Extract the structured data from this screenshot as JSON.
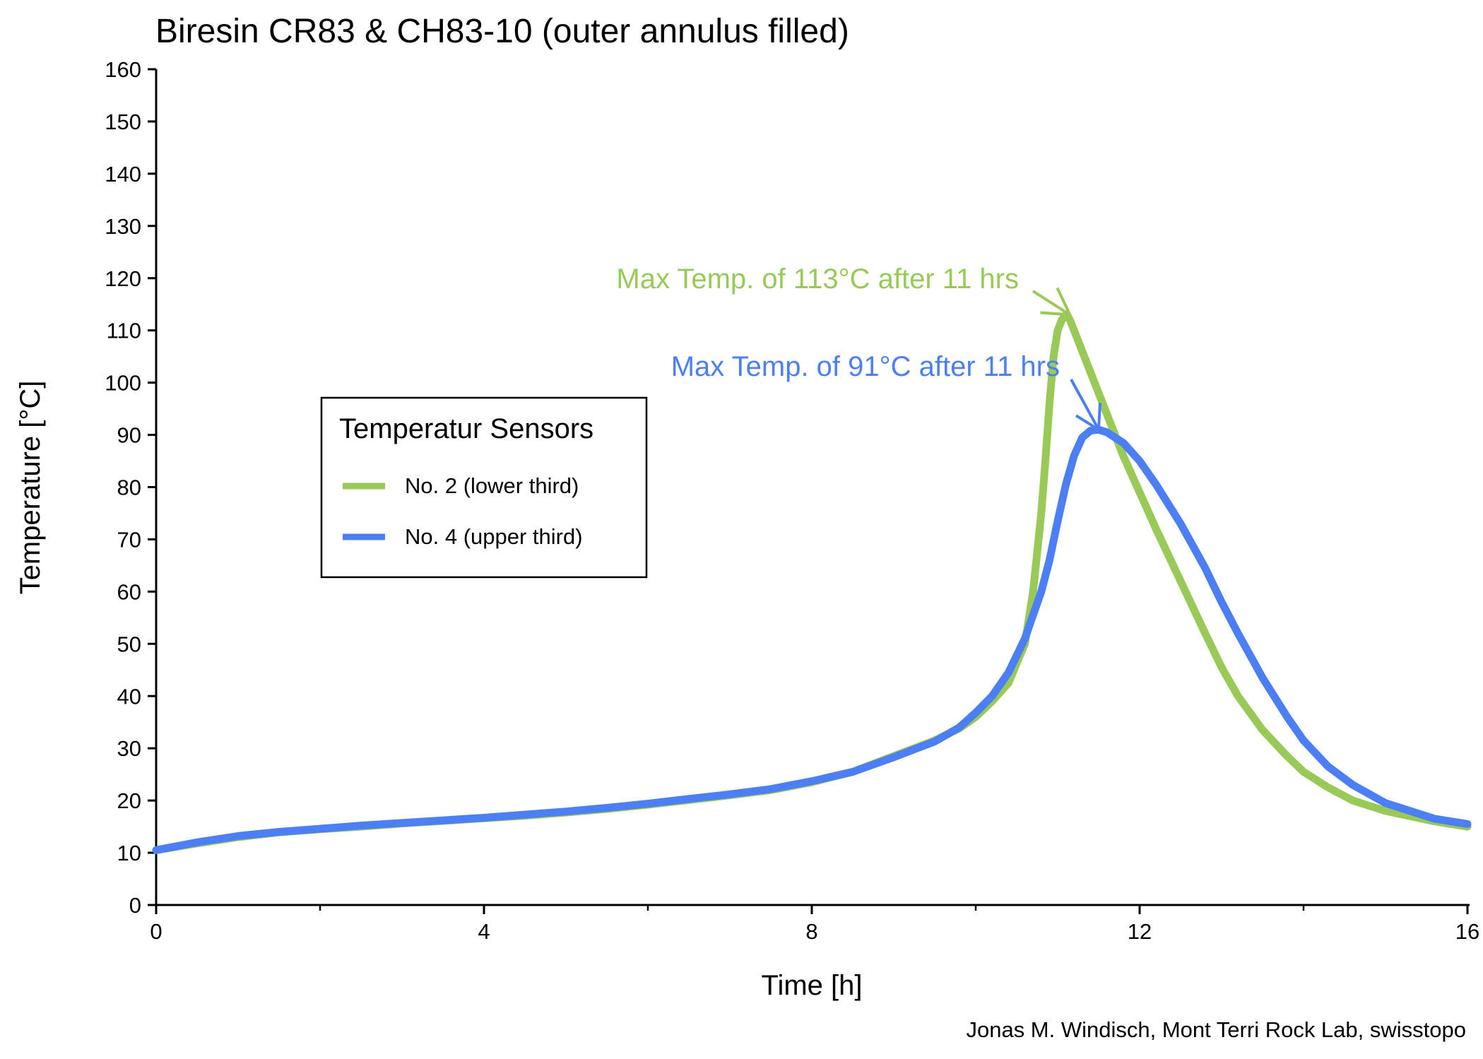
{
  "chart_data": {
    "type": "line",
    "title": "Biresin CR83 & CH83-10 (outer annulus filled)",
    "xlabel": "Time [h]",
    "ylabel": "Temperature [°C]",
    "xlim": [
      0,
      16
    ],
    "ylim": [
      0,
      160
    ],
    "x_ticks": [
      0,
      4,
      8,
      12,
      16
    ],
    "x_minor_ticks": [
      2,
      6,
      10,
      14
    ],
    "y_ticks": [
      0,
      10,
      20,
      30,
      40,
      50,
      60,
      70,
      80,
      90,
      100,
      110,
      120,
      130,
      140,
      150,
      160
    ],
    "grid": false,
    "legend": {
      "title": "Temperatur Sensors",
      "position": "center-left"
    },
    "series": [
      {
        "name": "No. 2 (lower third)",
        "color": "#99c957",
        "x": [
          0,
          0.5,
          1,
          1.5,
          2,
          2.5,
          3,
          3.5,
          4,
          4.5,
          5,
          5.5,
          6,
          6.5,
          7,
          7.5,
          8,
          8.5,
          9,
          9.5,
          9.8,
          10,
          10.2,
          10.4,
          10.6,
          10.7,
          10.8,
          10.85,
          10.9,
          10.95,
          11,
          11.05,
          11.1,
          11.15,
          11.2,
          11.3,
          11.4,
          11.5,
          11.6,
          11.8,
          12,
          12.2,
          12.5,
          12.8,
          13,
          13.2,
          13.5,
          13.8,
          14,
          14.3,
          14.6,
          15,
          15.3,
          15.6,
          16
        ],
        "values": [
          10.5,
          11.8,
          13.0,
          13.9,
          14.5,
          15.0,
          15.6,
          16.1,
          16.6,
          17.1,
          17.7,
          18.4,
          19.2,
          20.1,
          21.0,
          22.0,
          23.5,
          25.5,
          28.5,
          31.5,
          33.8,
          36.0,
          39.0,
          42.5,
          50.0,
          60.0,
          75.0,
          85.0,
          96.0,
          105.0,
          110.0,
          112.0,
          113.0,
          112.0,
          110.0,
          106.0,
          102.0,
          98.0,
          94.0,
          86.0,
          79.0,
          72.0,
          62.0,
          52.0,
          45.5,
          40.0,
          33.5,
          28.5,
          25.5,
          22.5,
          20.0,
          18.0,
          17.0,
          16.0,
          15.0
        ]
      },
      {
        "name": "No. 4 (upper third)",
        "color": "#4c7ff5",
        "x": [
          0,
          0.5,
          1,
          1.5,
          2,
          2.5,
          3,
          3.5,
          4,
          4.5,
          5,
          5.5,
          6,
          6.5,
          7,
          7.5,
          8,
          8.5,
          9,
          9.5,
          9.8,
          10,
          10.2,
          10.4,
          10.6,
          10.8,
          10.9,
          11,
          11.1,
          11.2,
          11.3,
          11.4,
          11.5,
          11.6,
          11.8,
          12,
          12.2,
          12.5,
          12.8,
          13,
          13.2,
          13.5,
          13.8,
          14,
          14.3,
          14.6,
          15,
          15.3,
          15.6,
          16
        ],
        "values": [
          10.5,
          12.0,
          13.2,
          14.0,
          14.6,
          15.2,
          15.7,
          16.2,
          16.7,
          17.3,
          17.9,
          18.6,
          19.4,
          20.3,
          21.2,
          22.2,
          23.7,
          25.5,
          28.3,
          31.3,
          34.0,
          36.8,
          40.0,
          44.5,
          51.0,
          60.0,
          66.0,
          73.5,
          80.5,
          86.0,
          89.5,
          90.8,
          91.0,
          90.5,
          88.5,
          85.0,
          80.5,
          73.0,
          64.5,
          58.0,
          52.0,
          43.5,
          36.0,
          31.5,
          26.5,
          23.0,
          19.5,
          18.0,
          16.5,
          15.5
        ]
      }
    ],
    "annotations": [
      {
        "text": "Max Temp. of 113°C after 11 hrs",
        "color": "#99c957",
        "x": 11.15,
        "y": 113
      },
      {
        "text": "Max Temp. of 91°C after 11 hrs",
        "color": "#4c7ff5",
        "x": 11.5,
        "y": 91
      }
    ],
    "credit": "Jonas M. Windisch, Mont Terri Rock Lab, swisstopo"
  }
}
